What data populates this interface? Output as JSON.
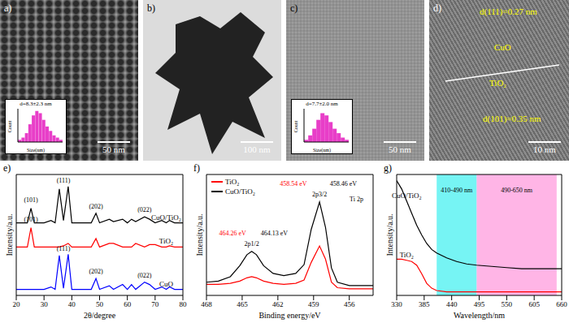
{
  "images": [
    {
      "label": "a)",
      "scale_bar": "50 nm",
      "inset": {
        "type": "histogram",
        "text": "d=8.3±2.3 nm",
        "x_label": "Size(nm)",
        "y_label": "Count",
        "x": [
          2,
          3,
          4,
          5,
          6,
          7,
          8,
          9,
          10,
          11,
          12,
          13,
          14
        ],
        "values": [
          1,
          2,
          4,
          8,
          12,
          14,
          13,
          10,
          7,
          5,
          3,
          2,
          1
        ],
        "ylim": [
          0,
          15
        ],
        "color": "#e83ec8",
        "tick_labels": false
      }
    },
    {
      "label": "b)",
      "scale_bar": "100 nm"
    },
    {
      "label": "c)",
      "scale_bar": "50 nm",
      "inset": {
        "type": "histogram",
        "text": "d=7.7±2.0 nm",
        "x_label": "Size(nm)",
        "y_label": "Count",
        "x": [
          3,
          4,
          5,
          6,
          7,
          8,
          9,
          10,
          11,
          12,
          13
        ],
        "values": [
          1,
          3,
          6,
          10,
          13,
          12,
          9,
          6,
          4,
          2,
          1
        ],
        "ylim": [
          0,
          15
        ],
        "color": "#e83ec8",
        "tick_labels": false
      }
    },
    {
      "label": "d)",
      "scale_bar": "10 nm",
      "annotations": [
        "d(111)=0.27 nm",
        "CuO",
        "TiO₂",
        "d(101)=0.35 nm"
      ]
    }
  ],
  "chart_data": [
    {
      "panel_label": "e)",
      "type": "line",
      "x_label": "2θ/degree",
      "y_label": "Intensity/a.u.",
      "x": [
        20,
        24,
        25.3,
        26.5,
        30,
        32.5,
        34,
        35.5,
        37,
        38.7,
        40,
        44,
        47,
        48.7,
        50,
        53.5,
        55,
        58.3,
        60,
        61.5,
        63,
        66.2,
        68,
        70,
        72.4,
        74,
        75.2,
        77,
        80
      ],
      "series": [
        {
          "name": "CuO/TiO₂",
          "color": "#000000",
          "values": [
            60,
            60,
            72,
            60,
            60,
            62,
            60,
            88,
            62,
            90,
            60,
            60,
            60,
            68,
            60,
            63,
            61,
            63,
            60,
            63,
            61,
            65,
            63,
            60,
            62,
            60,
            62,
            60,
            60
          ]
        },
        {
          "name": "TiO₂",
          "color": "#ff0000",
          "values": [
            40,
            40,
            56,
            40,
            40,
            40,
            40,
            40,
            41,
            43,
            40,
            40,
            40,
            47,
            40,
            43,
            43,
            40,
            40,
            40,
            43,
            40,
            42,
            42,
            40,
            40,
            41,
            40,
            40
          ]
        },
        {
          "name": "CuO",
          "color": "#0000ff",
          "values": [
            5,
            5,
            5,
            5,
            5,
            7,
            5,
            33,
            6,
            34,
            5,
            5,
            5,
            14,
            5,
            8,
            5,
            9,
            5,
            9,
            5,
            11,
            9,
            5,
            7,
            5,
            7,
            5,
            5
          ]
        }
      ],
      "xlim": [
        20,
        80
      ],
      "xticks": [
        20,
        30,
        40,
        50,
        60,
        70,
        80
      ],
      "ylim": [
        0,
        100
      ],
      "tick_labels": "x",
      "annotations": [
        {
          "text": "(101)",
          "x": 25.3,
          "y": 79
        },
        {
          "text": "(111)",
          "x": 37,
          "y": 95
        },
        {
          "text": "(202)",
          "x": 48.7,
          "y": 74
        },
        {
          "text": "(022)",
          "x": 66.2,
          "y": 71
        },
        {
          "text": "(101)",
          "x": 25.3,
          "y": 63
        },
        {
          "text": "(111)",
          "x": 37,
          "y": 39
        },
        {
          "text": "(202)",
          "x": 48.7,
          "y": 20
        },
        {
          "text": "(022)",
          "x": 66.2,
          "y": 17
        }
      ]
    },
    {
      "panel_label": "f)",
      "type": "line",
      "x_label": "Binding energy/eV",
      "y_label": "Intensity/a.u.",
      "x": [
        468,
        467,
        466,
        465.2,
        464.6,
        464.2,
        463.8,
        463.2,
        462.4,
        461.5,
        460.5,
        459.8,
        459.2,
        458.5,
        458,
        457.5,
        457,
        456,
        455,
        454
      ],
      "series": [
        {
          "name": "TiO₂",
          "color": "#ff0000",
          "values": [
            10,
            10,
            11,
            13,
            16,
            17,
            16,
            13,
            11,
            10,
            11,
            14,
            30,
            45,
            33,
            12,
            7,
            6,
            6,
            6
          ]
        },
        {
          "name": "CuO/TiO₂",
          "color": "#000000",
          "values": [
            12,
            13,
            17,
            27,
            37,
            40,
            37,
            27,
            20,
            18,
            20,
            28,
            60,
            85,
            62,
            25,
            12,
            9,
            9,
            9
          ]
        }
      ],
      "xlim": [
        468,
        454
      ],
      "xticks": [
        468,
        465,
        462,
        459,
        456
      ],
      "ylim": [
        0,
        110
      ],
      "tick_labels": "x",
      "legend": "top-left",
      "annotations": [
        {
          "text": "Ti 2p",
          "x": 455.4,
          "y": 88
        },
        {
          "text": "2p1/2",
          "x": 464.2,
          "y": 47
        },
        {
          "text": "2p3/2",
          "x": 458.5,
          "y": 92
        },
        {
          "text": "458.54 eV",
          "x": 460.7,
          "y": 102,
          "color": "#ff0000"
        },
        {
          "text": "458.46 eV",
          "x": 456.5,
          "y": 102,
          "color": "#000000"
        },
        {
          "text": "464.26 eV",
          "x": 465.8,
          "y": 57,
          "color": "#ff0000"
        },
        {
          "text": "464.13 eV",
          "x": 462.3,
          "y": 57,
          "color": "#000000"
        }
      ]
    },
    {
      "panel_label": "g)",
      "type": "line",
      "x_label": "Wavelength/nm",
      "y_label": "Intensity/a.u.",
      "x": [
        330,
        340,
        350,
        360,
        370,
        380,
        390,
        400,
        410,
        430,
        450,
        470,
        490,
        520,
        550,
        580,
        610,
        640,
        660
      ],
      "series": [
        {
          "name": "CuO/TiO₂",
          "color": "#000000",
          "values": [
            95,
            88,
            78,
            68,
            58,
            50,
            43,
            38,
            35,
            31,
            28,
            26,
            25,
            24,
            23,
            22,
            22,
            22,
            22
          ]
        },
        {
          "name": "TiO₂",
          "color": "#ff0000",
          "values": [
            30,
            30,
            29,
            28,
            25,
            18,
            10,
            6,
            4,
            3,
            3,
            3,
            3,
            3,
            3,
            3,
            3,
            3,
            3
          ]
        }
      ],
      "xlim": [
        330,
        660
      ],
      "xticks": [
        330,
        385,
        440,
        495,
        550,
        605,
        660
      ],
      "ylim": [
        0,
        100
      ],
      "tick_labels": "x",
      "bands": [
        {
          "from": 410,
          "to": 490,
          "label": "410-490 nm",
          "color": "#3cf0f0"
        },
        {
          "from": 490,
          "to": 650,
          "label": "490-650 nm",
          "color": "#ff96dc"
        }
      ]
    }
  ]
}
